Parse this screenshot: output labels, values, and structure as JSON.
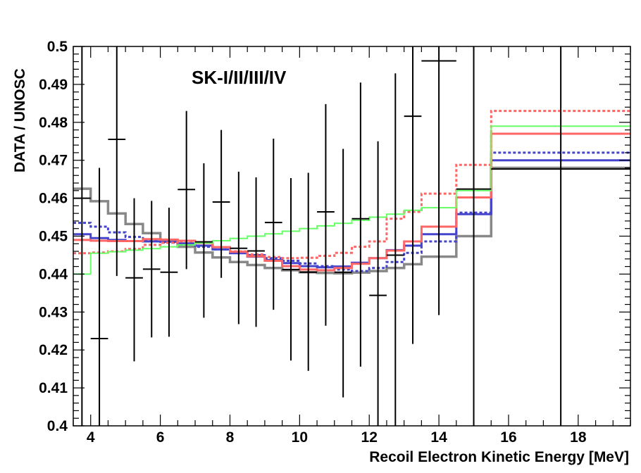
{
  "chart_data": {
    "type": "line",
    "title": "SK-I/II/III/IV",
    "xlabel": "Recoil Electron Kinetic Energy [MeV]",
    "ylabel": "DATA / UNOSC",
    "xlim": [
      3.5,
      19.5
    ],
    "ylim": [
      0.4,
      0.5
    ],
    "xticks": [
      4,
      6,
      8,
      10,
      12,
      14,
      16,
      18
    ],
    "yticks": [
      0.4,
      0.41,
      0.42,
      0.43,
      0.44,
      0.45,
      0.46,
      0.47,
      0.48,
      0.49,
      0.5
    ],
    "ytick_labels": [
      "0.4",
      "0.41",
      "0.42",
      "0.43",
      "0.44",
      "0.45",
      "0.46",
      "0.47",
      "0.48",
      "0.49",
      "0.5"
    ],
    "grid": false,
    "data_points": {
      "x": [
        3.75,
        4.25,
        4.75,
        5.25,
        5.75,
        6.25,
        6.75,
        7.25,
        7.75,
        8.25,
        8.75,
        9.25,
        9.75,
        10.25,
        10.75,
        11.25,
        11.75,
        12.25,
        12.75,
        13.25,
        14.0,
        15.0,
        17.5
      ],
      "xerr": [
        0.25,
        0.25,
        0.25,
        0.25,
        0.25,
        0.25,
        0.25,
        0.25,
        0.25,
        0.25,
        0.25,
        0.25,
        0.25,
        0.25,
        0.25,
        0.25,
        0.25,
        0.25,
        0.25,
        0.25,
        0.5,
        0.5,
        2.0
      ],
      "y": [
        0.46,
        0.423,
        0.4755,
        0.439,
        0.4413,
        0.4405,
        0.4623,
        0.4485,
        0.459,
        0.4468,
        0.4461,
        0.4536,
        0.4412,
        0.4405,
        0.4564,
        0.4405,
        0.4546,
        0.4344,
        0.445,
        0.4816,
        0.4962,
        0.4624,
        0.4677
      ],
      "yerr_low": [
        0.063,
        0.063,
        0.036,
        0.022,
        0.018,
        0.017,
        0.021,
        0.02,
        0.02,
        0.02,
        0.02,
        0.023,
        0.024,
        0.026,
        0.03,
        0.033,
        0.039,
        0.062,
        0.06,
        0.06,
        0.067,
        0.065,
        0.068
      ],
      "yerr_high": [
        0.045,
        0.045,
        0.036,
        0.021,
        0.018,
        0.017,
        0.0207,
        0.0207,
        0.019,
        0.0202,
        0.0194,
        0.0221,
        0.0241,
        0.0262,
        0.0284,
        0.0325,
        0.0359,
        0.0406,
        0.0479,
        0.0464,
        0.034,
        0.0376,
        0.0323
      ]
    },
    "bin_edges": [
      3.5,
      4.0,
      4.5,
      5.0,
      5.5,
      6.0,
      6.5,
      7.0,
      7.5,
      8.0,
      8.5,
      9.0,
      9.5,
      10.0,
      10.5,
      11.0,
      11.5,
      12.0,
      12.5,
      13.0,
      13.5,
      14.5,
      15.5,
      19.5
    ],
    "series": [
      {
        "color": "#888888",
        "dash": "solid",
        "width": 3.5,
        "values": [
          0.4625,
          0.4592,
          0.456,
          0.4532,
          0.4508,
          0.4488,
          0.4472,
          0.4457,
          0.4444,
          0.4432,
          0.4424,
          0.4416,
          0.441,
          0.4405,
          0.4403,
          0.4402,
          0.4404,
          0.4408,
          0.4416,
          0.4426,
          0.4446,
          0.45,
          0.468
        ]
      },
      {
        "color": "#4444cc",
        "dash": "dashed",
        "width": 3,
        "values": [
          0.4535,
          0.4525,
          0.451,
          0.4498,
          0.4489,
          0.4483,
          0.4478,
          0.4472,
          0.4465,
          0.4457,
          0.445,
          0.4442,
          0.4435,
          0.4428,
          0.4421,
          0.4412,
          0.4408,
          0.4416,
          0.4432,
          0.4456,
          0.4486,
          0.4562,
          0.472
        ]
      },
      {
        "color": "#4444cc",
        "dash": "solid",
        "width": 3,
        "values": [
          0.4505,
          0.4495,
          0.449,
          0.4487,
          0.4486,
          0.4485,
          0.4481,
          0.4475,
          0.4465,
          0.4455,
          0.4446,
          0.4437,
          0.4429,
          0.4421,
          0.4418,
          0.442,
          0.443,
          0.4442,
          0.4463,
          0.4475,
          0.4505,
          0.4558,
          0.47
        ]
      },
      {
        "color": "#ff6666",
        "dash": "dashed",
        "width": 3,
        "values": [
          0.4455,
          0.4457,
          0.446,
          0.4466,
          0.4477,
          0.4483,
          0.4486,
          0.4484,
          0.4471,
          0.446,
          0.4452,
          0.4445,
          0.4442,
          0.4443,
          0.4448,
          0.4456,
          0.4472,
          0.4486,
          0.4546,
          0.4564,
          0.4612,
          0.4688,
          0.483
        ]
      },
      {
        "color": "#ff6666",
        "dash": "solid",
        "width": 3,
        "values": [
          0.449,
          0.4488,
          0.4487,
          0.4487,
          0.4492,
          0.4491,
          0.4488,
          0.4482,
          0.4471,
          0.4459,
          0.4447,
          0.4435,
          0.4421,
          0.4412,
          0.441,
          0.4416,
          0.4427,
          0.4442,
          0.4462,
          0.4486,
          0.4525,
          0.4602,
          0.477
        ]
      },
      {
        "color": "#66ff66",
        "dash": "solid",
        "width": 2,
        "values": [
          0.44,
          0.4455,
          0.4459,
          0.4463,
          0.4467,
          0.4472,
          0.4477,
          0.4482,
          0.4488,
          0.4494,
          0.45,
          0.4506,
          0.4513,
          0.452,
          0.4527,
          0.4534,
          0.4542,
          0.455,
          0.4558,
          0.4568,
          0.4575,
          0.462,
          0.479
        ]
      }
    ]
  }
}
